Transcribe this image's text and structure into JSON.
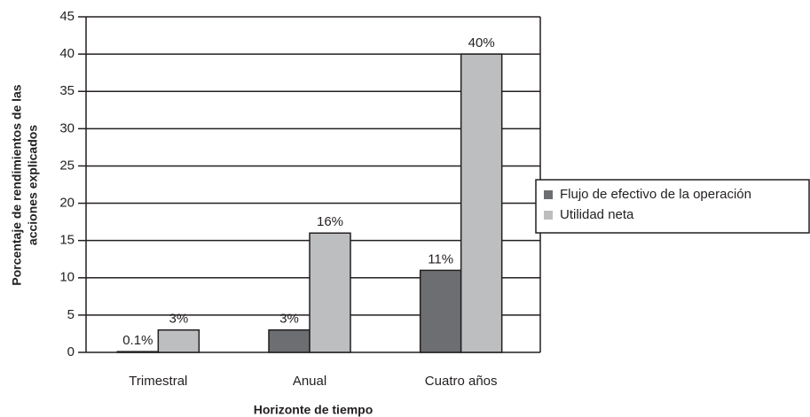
{
  "chart_data": {
    "type": "bar",
    "categories": [
      "Trimestral",
      "Anual",
      "Cuatro años"
    ],
    "series": [
      {
        "name": "Flujo de efectivo de la operación",
        "color": "#6d6e71",
        "values": [
          0.1,
          3,
          11
        ],
        "value_labels": [
          "0.1%",
          "3%",
          "11%"
        ]
      },
      {
        "name": "Utilidad neta",
        "color": "#bcbec0",
        "values": [
          3,
          16,
          40
        ],
        "value_labels": [
          "3%",
          "16%",
          "40%"
        ]
      }
    ],
    "xlabel": "Horizonte de tiempo",
    "ylabel": [
      "Porcentaje de rendimientos de las",
      "acciones explicados"
    ],
    "ylim": [
      0,
      45
    ],
    "yticks": [
      0,
      5,
      10,
      15,
      20,
      25,
      30,
      35,
      40,
      45
    ],
    "grid": true,
    "legend": "right"
  }
}
